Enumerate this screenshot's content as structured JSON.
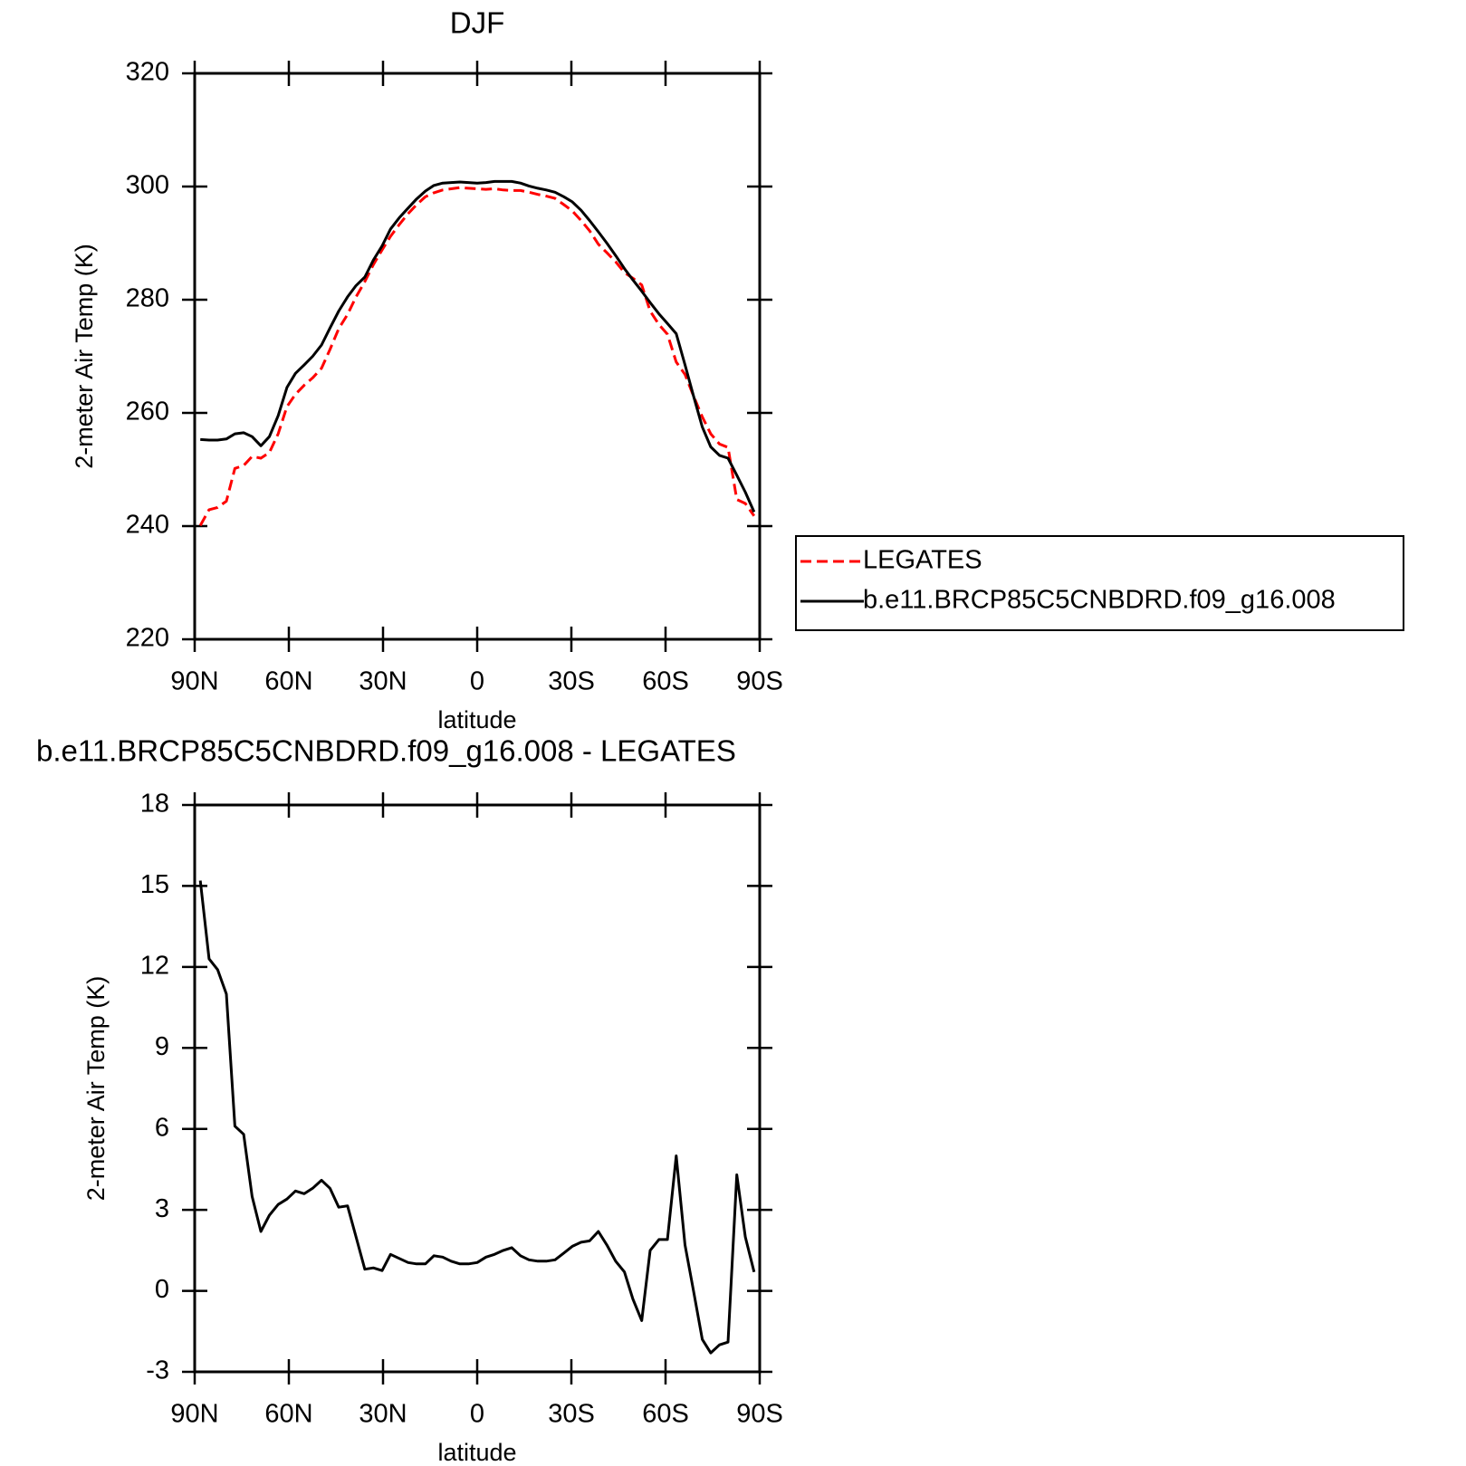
{
  "chart_data": [
    {
      "type": "line",
      "title": "DJF",
      "xlabel": "latitude",
      "ylabel": "2-meter Air Temp (K)",
      "x": [
        88.2,
        85.4,
        82.7,
        79.9,
        77.2,
        74.4,
        71.7,
        68.9,
        66.2,
        63.4,
        60.6,
        57.9,
        55.1,
        52.4,
        49.6,
        46.9,
        44.1,
        41.3,
        38.6,
        35.8,
        33.1,
        30.3,
        27.6,
        24.8,
        22.0,
        19.3,
        16.5,
        13.8,
        11.0,
        8.3,
        5.5,
        2.8,
        0,
        -2.8,
        -5.5,
        -8.3,
        -11.0,
        -13.8,
        -16.5,
        -19.3,
        -22.0,
        -24.8,
        -27.6,
        -30.3,
        -33.1,
        -35.8,
        -38.6,
        -41.3,
        -44.1,
        -46.9,
        -49.6,
        -52.4,
        -55.1,
        -57.9,
        -60.6,
        -63.4,
        -66.2,
        -68.9,
        -71.7,
        -74.4,
        -77.2,
        -79.9,
        -82.7,
        -85.4,
        -88.2
      ],
      "series": [
        {
          "name": "LEGATES",
          "color": "#ff0000",
          "linestyle": "dashed",
          "values": [
            240.1,
            242.9,
            243.3,
            244.4,
            250.2,
            250.7,
            252.3,
            252.0,
            253.0,
            256.3,
            261.1,
            263.3,
            264.9,
            266.2,
            267.9,
            271.2,
            274.9,
            277.4,
            280.5,
            283.2,
            286.2,
            288.8,
            291.2,
            293.3,
            295.2,
            296.8,
            298.2,
            298.9,
            299.4,
            299.6,
            299.8,
            299.7,
            299.6,
            299.5,
            299.6,
            299.4,
            299.3,
            299.3,
            299.0,
            298.6,
            298.3,
            297.9,
            296.8,
            295.7,
            294.0,
            292.2,
            289.8,
            288.3,
            286.7,
            284.8,
            283.8,
            282.6,
            278.0,
            275.6,
            273.9,
            269.0,
            266.8,
            263.0,
            259.3,
            256.3,
            254.5,
            253.9,
            244.7,
            244.0,
            241.8
          ]
        },
        {
          "name": "b.e11.BRCP85C5CNBDRD.f09_g16.008",
          "color": "#000000",
          "linestyle": "solid",
          "values": [
            255.3,
            255.2,
            255.2,
            255.4,
            256.3,
            256.5,
            255.8,
            254.2,
            255.8,
            259.5,
            264.5,
            267.0,
            268.5,
            270.0,
            272.0,
            275.0,
            278.0,
            280.5,
            282.5,
            284.0,
            287.0,
            289.5,
            292.5,
            294.5,
            296.2,
            297.8,
            299.2,
            300.2,
            300.6,
            300.7,
            300.8,
            300.7,
            300.6,
            300.7,
            300.9,
            300.9,
            300.9,
            300.6,
            300.1,
            299.7,
            299.4,
            299.0,
            298.2,
            297.3,
            295.8,
            294.0,
            292.0,
            290.0,
            287.8,
            285.5,
            283.5,
            281.5,
            279.5,
            277.5,
            275.8,
            274.0,
            268.5,
            263.0,
            257.5,
            254.0,
            252.5,
            252.0,
            249.0,
            246.0,
            242.5
          ]
        }
      ],
      "xlim": [
        90,
        -90
      ],
      "ylim": [
        220,
        320
      ],
      "xticks": [
        {
          "value": 90,
          "label": "90N"
        },
        {
          "value": 60,
          "label": "60N"
        },
        {
          "value": 30,
          "label": "30N"
        },
        0,
        {
          "value": -30,
          "label": "30S"
        },
        {
          "value": -60,
          "label": "60S"
        },
        {
          "value": -90,
          "label": "90S"
        }
      ],
      "yticks": [
        220,
        240,
        260,
        280,
        300,
        320
      ],
      "legend": "right"
    },
    {
      "type": "line",
      "title": "b.e11.BRCP85C5CNBDRD.f09_g16.008 - LEGATES",
      "xlabel": "latitude",
      "ylabel": "2-meter Air Temp (K)",
      "x": [
        88.2,
        85.4,
        82.7,
        79.9,
        77.2,
        74.4,
        71.7,
        68.9,
        66.2,
        63.4,
        60.6,
        57.9,
        55.1,
        52.4,
        49.6,
        46.9,
        44.1,
        41.3,
        38.6,
        35.8,
        33.1,
        30.3,
        27.6,
        24.8,
        22.0,
        19.3,
        16.5,
        13.8,
        11.0,
        8.3,
        5.5,
        2.8,
        0,
        -2.8,
        -5.5,
        -8.3,
        -11.0,
        -13.8,
        -16.5,
        -19.3,
        -22.0,
        -24.8,
        -27.6,
        -30.3,
        -33.1,
        -35.8,
        -38.6,
        -41.3,
        -44.1,
        -46.9,
        -49.6,
        -52.4,
        -55.1,
        -57.9,
        -60.6,
        -63.4,
        -66.2,
        -68.9,
        -71.7,
        -74.4,
        -77.2,
        -79.9,
        -82.7,
        -85.4,
        -88.2
      ],
      "series": [
        {
          "color": "#000000",
          "linestyle": "solid",
          "values": [
            15.2,
            12.3,
            11.9,
            11.0,
            6.1,
            5.8,
            3.5,
            2.2,
            2.8,
            3.2,
            3.4,
            3.7,
            3.6,
            3.8,
            4.1,
            3.8,
            3.1,
            3.15,
            2.0,
            0.8,
            0.85,
            0.75,
            1.35,
            1.2,
            1.05,
            1.0,
            1.0,
            1.3,
            1.25,
            1.1,
            1.0,
            1.0,
            1.05,
            1.25,
            1.35,
            1.5,
            1.6,
            1.3,
            1.15,
            1.1,
            1.1,
            1.15,
            1.4,
            1.65,
            1.8,
            1.85,
            2.2,
            1.7,
            1.1,
            0.7,
            -0.3,
            -1.1,
            1.5,
            1.9,
            1.9,
            5.0,
            1.7,
            0.0,
            -1.8,
            -2.3,
            -2.0,
            -1.9,
            4.3,
            2.0,
            0.7
          ]
        }
      ],
      "xlim": [
        90,
        -90
      ],
      "ylim": [
        -3,
        18
      ],
      "xticks": [
        {
          "value": 90,
          "label": "90N"
        },
        {
          "value": 60,
          "label": "60N"
        },
        {
          "value": 30,
          "label": "30N"
        },
        0,
        {
          "value": -30,
          "label": "30S"
        },
        {
          "value": -60,
          "label": "60S"
        },
        {
          "value": -90,
          "label": "90S"
        }
      ],
      "yticks": [
        -3,
        0,
        3,
        6,
        9,
        12,
        15,
        18
      ]
    }
  ]
}
